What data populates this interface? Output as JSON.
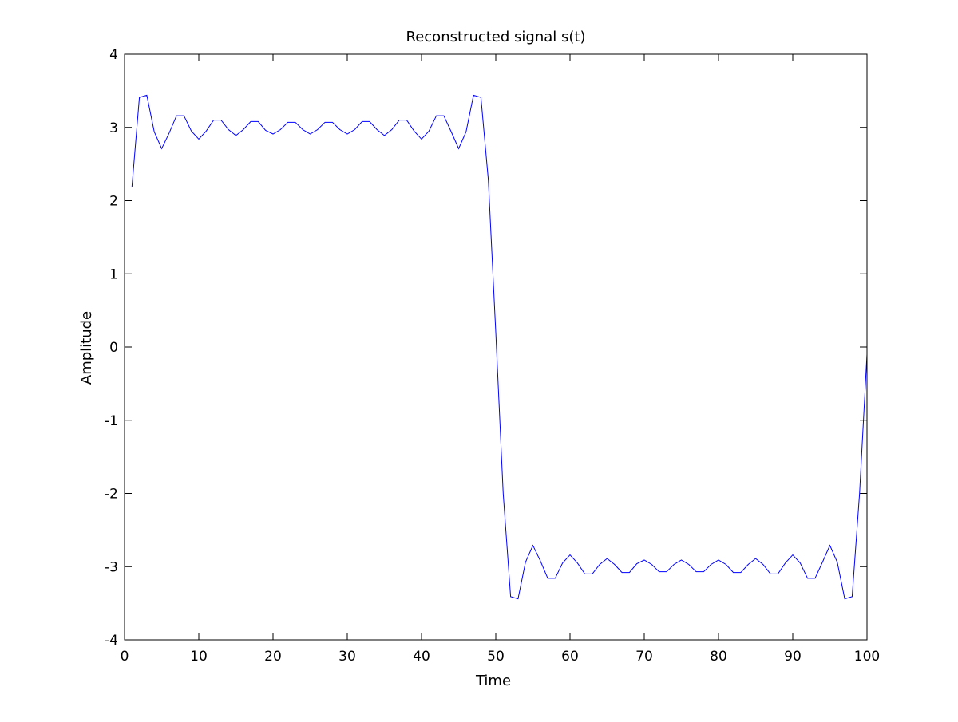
{
  "chart_data": {
    "type": "line",
    "title": "Reconstructed signal s(t)",
    "xlabel": "Time",
    "ylabel": "Amplitude",
    "xlim": [
      0,
      100
    ],
    "ylim": [
      -4,
      4
    ],
    "xticks": [
      0,
      10,
      20,
      30,
      40,
      50,
      60,
      70,
      80,
      90,
      100
    ],
    "yticks": [
      -4,
      -3,
      -2,
      -1,
      0,
      1,
      2,
      3,
      4
    ],
    "grid": false,
    "line_color": "#0000ff",
    "series": [
      {
        "x": [
          1,
          2,
          3,
          4,
          5,
          6,
          7,
          8,
          9,
          10,
          11,
          12,
          13,
          14,
          15,
          16,
          17,
          18,
          19,
          20,
          21,
          22,
          23,
          24,
          25,
          26,
          27,
          28,
          29,
          30,
          31,
          32,
          33,
          34,
          35,
          36,
          37,
          38,
          39,
          40,
          41,
          42,
          43,
          44,
          45,
          46,
          47,
          48,
          49,
          50,
          51,
          52,
          53,
          54,
          55,
          56,
          57,
          58,
          59,
          60,
          61,
          62,
          63,
          64,
          65,
          66,
          67,
          68,
          69,
          70,
          71,
          72,
          73,
          74,
          75,
          76,
          77,
          78,
          79,
          80,
          81,
          82,
          83,
          84,
          85,
          86,
          87,
          88,
          89,
          90,
          91,
          92,
          93,
          94,
          95,
          96,
          97,
          98,
          99,
          100
        ],
        "y": [
          2.19,
          3.41,
          3.44,
          2.94,
          2.71,
          2.92,
          3.16,
          3.16,
          2.95,
          2.84,
          2.95,
          3.1,
          3.1,
          2.97,
          2.89,
          2.97,
          3.08,
          3.08,
          2.96,
          2.91,
          2.97,
          3.07,
          3.07,
          2.97,
          2.91,
          2.97,
          3.07,
          3.07,
          2.97,
          2.91,
          2.97,
          3.08,
          3.08,
          2.97,
          2.89,
          2.97,
          3.1,
          3.1,
          2.95,
          2.84,
          2.95,
          3.16,
          3.16,
          2.94,
          2.71,
          2.94,
          3.44,
          3.41,
          2.28,
          0.2,
          -2.0,
          -3.41,
          -3.44,
          -2.94,
          -2.71,
          -2.92,
          -3.16,
          -3.16,
          -2.95,
          -2.84,
          -2.95,
          -3.1,
          -3.1,
          -2.97,
          -2.89,
          -2.97,
          -3.08,
          -3.08,
          -2.96,
          -2.91,
          -2.97,
          -3.07,
          -3.07,
          -2.97,
          -2.91,
          -2.97,
          -3.07,
          -3.07,
          -2.97,
          -2.91,
          -2.97,
          -3.08,
          -3.08,
          -2.97,
          -2.89,
          -2.97,
          -3.1,
          -3.1,
          -2.95,
          -2.84,
          -2.95,
          -3.16,
          -3.16,
          -2.94,
          -2.71,
          -2.94,
          -3.44,
          -3.41,
          -2.0,
          -0.1
        ]
      }
    ]
  }
}
